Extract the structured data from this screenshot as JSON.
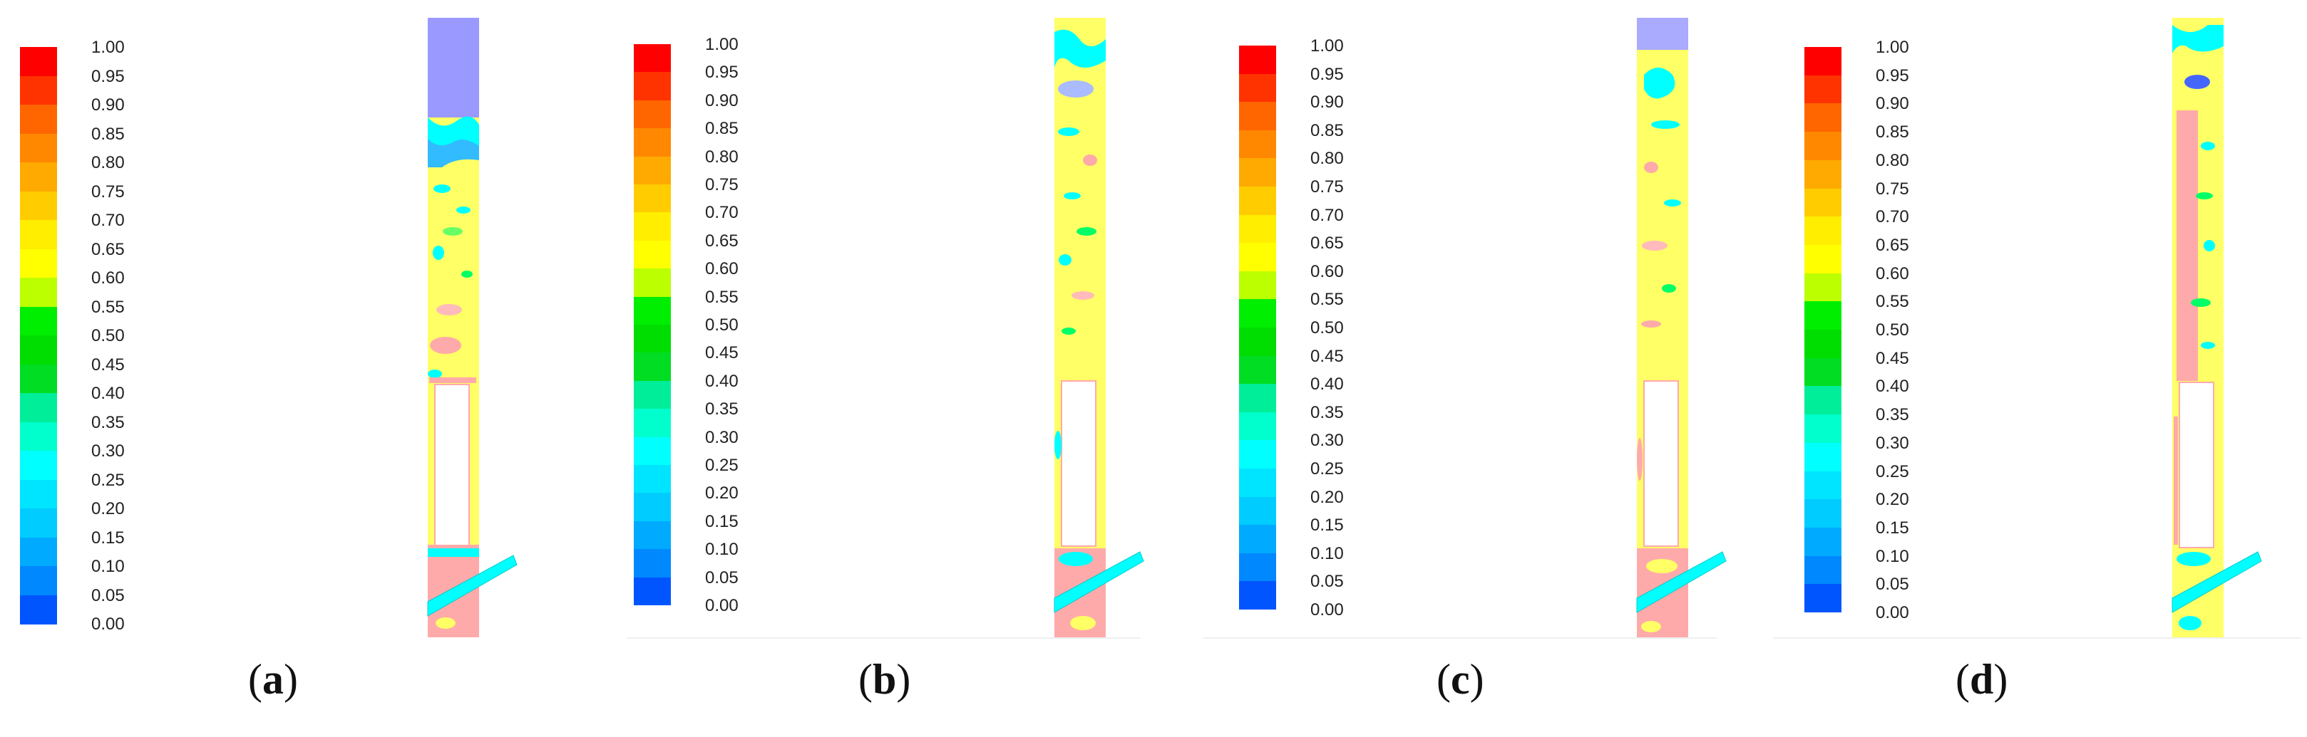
{
  "colorbar": {
    "labels": [
      "1.00",
      "0.95",
      "0.90",
      "0.85",
      "0.80",
      "0.75",
      "0.70",
      "0.65",
      "0.60",
      "0.55",
      "0.50",
      "0.45",
      "0.40",
      "0.35",
      "0.30",
      "0.25",
      "0.20",
      "0.15",
      "0.10",
      "0.05",
      "0.00"
    ],
    "colors": [
      "#ff0000",
      "#ff3300",
      "#ff6600",
      "#ff8800",
      "#ffaa00",
      "#ffcc00",
      "#ffee00",
      "#ffff00",
      "#bbff00",
      "#00ee00",
      "#00dd00",
      "#00dd22",
      "#00ee99",
      "#00ffcc",
      "#00ffff",
      "#00e5ff",
      "#00ccff",
      "#00aaff",
      "#0088ff",
      "#0055ff",
      "#0000ff"
    ]
  },
  "panels": [
    {
      "id": "a",
      "caption": "a"
    },
    {
      "id": "b",
      "caption": "b"
    },
    {
      "id": "c",
      "caption": "c"
    },
    {
      "id": "d",
      "caption": "d"
    }
  ],
  "palette": {
    "lavender": "#9999ff",
    "cyan": "#00ffff",
    "yellow": "#ffff55",
    "pink": "#ffaaaa",
    "green": "#00ff66",
    "blue": "#4466ff"
  }
}
